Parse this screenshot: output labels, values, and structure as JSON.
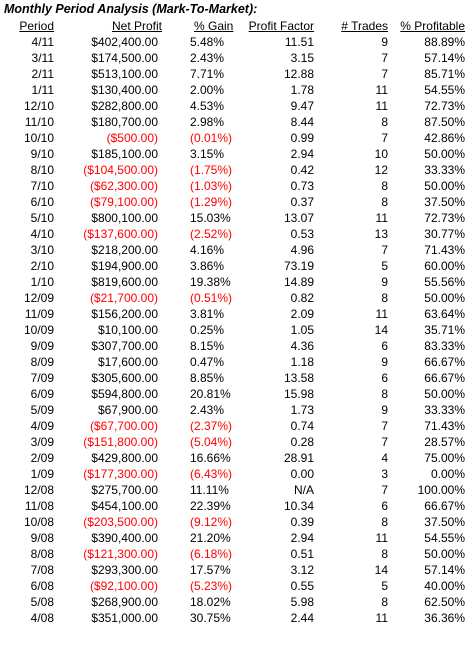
{
  "title": "Monthly Period Analysis (Mark-To-Market):",
  "headers": {
    "period": "Period",
    "net_profit": "Net Profit",
    "gain": "% Gain",
    "profit_factor": "Profit Factor",
    "trades": "# Trades",
    "profitable": "% Profitable"
  },
  "colors": {
    "negative": "#ff0000",
    "text": "#000000"
  },
  "rows": [
    {
      "period": "4/11",
      "net_profit": "$402,400.00",
      "gain": "5.48%",
      "profit_factor": "11.51",
      "trades": "9",
      "profitable": "88.89%",
      "negative": false
    },
    {
      "period": "3/11",
      "net_profit": "$174,500.00",
      "gain": "2.43%",
      "profit_factor": "3.15",
      "trades": "7",
      "profitable": "57.14%",
      "negative": false
    },
    {
      "period": "2/11",
      "net_profit": "$513,100.00",
      "gain": "7.71%",
      "profit_factor": "12.88",
      "trades": "7",
      "profitable": "85.71%",
      "negative": false
    },
    {
      "period": "1/11",
      "net_profit": "$130,400.00",
      "gain": "2.00%",
      "profit_factor": "1.78",
      "trades": "11",
      "profitable": "54.55%",
      "negative": false
    },
    {
      "period": "12/10",
      "net_profit": "$282,800.00",
      "gain": "4.53%",
      "profit_factor": "9.47",
      "trades": "11",
      "profitable": "72.73%",
      "negative": false
    },
    {
      "period": "11/10",
      "net_profit": "$180,700.00",
      "gain": "2.98%",
      "profit_factor": "8.44",
      "trades": "8",
      "profitable": "87.50%",
      "negative": false
    },
    {
      "period": "10/10",
      "net_profit": "($500.00)",
      "gain": "(0.01%)",
      "profit_factor": "0.99",
      "trades": "7",
      "profitable": "42.86%",
      "negative": true
    },
    {
      "period": "9/10",
      "net_profit": "$185,100.00",
      "gain": "3.15%",
      "profit_factor": "2.94",
      "trades": "10",
      "profitable": "50.00%",
      "negative": false
    },
    {
      "period": "8/10",
      "net_profit": "($104,500.00)",
      "gain": "(1.75%)",
      "profit_factor": "0.42",
      "trades": "12",
      "profitable": "33.33%",
      "negative": true
    },
    {
      "period": "7/10",
      "net_profit": "($62,300.00)",
      "gain": "(1.03%)",
      "profit_factor": "0.73",
      "trades": "8",
      "profitable": "50.00%",
      "negative": true
    },
    {
      "period": "6/10",
      "net_profit": "($79,100.00)",
      "gain": "(1.29%)",
      "profit_factor": "0.37",
      "trades": "8",
      "profitable": "37.50%",
      "negative": true
    },
    {
      "period": "5/10",
      "net_profit": "$800,100.00",
      "gain": "15.03%",
      "profit_factor": "13.07",
      "trades": "11",
      "profitable": "72.73%",
      "negative": false
    },
    {
      "period": "4/10",
      "net_profit": "($137,600.00)",
      "gain": "(2.52%)",
      "profit_factor": "0.53",
      "trades": "13",
      "profitable": "30.77%",
      "negative": true
    },
    {
      "period": "3/10",
      "net_profit": "$218,200.00",
      "gain": "4.16%",
      "profit_factor": "4.96",
      "trades": "7",
      "profitable": "71.43%",
      "negative": false
    },
    {
      "period": "2/10",
      "net_profit": "$194,900.00",
      "gain": "3.86%",
      "profit_factor": "73.19",
      "trades": "5",
      "profitable": "60.00%",
      "negative": false
    },
    {
      "period": "1/10",
      "net_profit": "$819,600.00",
      "gain": "19.38%",
      "profit_factor": "14.89",
      "trades": "9",
      "profitable": "55.56%",
      "negative": false
    },
    {
      "period": "12/09",
      "net_profit": "($21,700.00)",
      "gain": "(0.51%)",
      "profit_factor": "0.82",
      "trades": "8",
      "profitable": "50.00%",
      "negative": true
    },
    {
      "period": "11/09",
      "net_profit": "$156,200.00",
      "gain": "3.81%",
      "profit_factor": "2.09",
      "trades": "11",
      "profitable": "63.64%",
      "negative": false
    },
    {
      "period": "10/09",
      "net_profit": "$10,100.00",
      "gain": "0.25%",
      "profit_factor": "1.05",
      "trades": "14",
      "profitable": "35.71%",
      "negative": false
    },
    {
      "period": "9/09",
      "net_profit": "$307,700.00",
      "gain": "8.15%",
      "profit_factor": "4.36",
      "trades": "6",
      "profitable": "83.33%",
      "negative": false
    },
    {
      "period": "8/09",
      "net_profit": "$17,600.00",
      "gain": "0.47%",
      "profit_factor": "1.18",
      "trades": "9",
      "profitable": "66.67%",
      "negative": false
    },
    {
      "period": "7/09",
      "net_profit": "$305,600.00",
      "gain": "8.85%",
      "profit_factor": "13.58",
      "trades": "6",
      "profitable": "66.67%",
      "negative": false
    },
    {
      "period": "6/09",
      "net_profit": "$594,800.00",
      "gain": "20.81%",
      "profit_factor": "15.98",
      "trades": "8",
      "profitable": "50.00%",
      "negative": false
    },
    {
      "period": "5/09",
      "net_profit": "$67,900.00",
      "gain": "2.43%",
      "profit_factor": "1.73",
      "trades": "9",
      "profitable": "33.33%",
      "negative": false
    },
    {
      "period": "4/09",
      "net_profit": "($67,700.00)",
      "gain": "(2.37%)",
      "profit_factor": "0.74",
      "trades": "7",
      "profitable": "71.43%",
      "negative": true
    },
    {
      "period": "3/09",
      "net_profit": "($151,800.00)",
      "gain": "(5.04%)",
      "profit_factor": "0.28",
      "trades": "7",
      "profitable": "28.57%",
      "negative": true
    },
    {
      "period": "2/09",
      "net_profit": "$429,800.00",
      "gain": "16.66%",
      "profit_factor": "28.91",
      "trades": "4",
      "profitable": "75.00%",
      "negative": false
    },
    {
      "period": "1/09",
      "net_profit": "($177,300.00)",
      "gain": "(6.43%)",
      "profit_factor": "0.00",
      "trades": "3",
      "profitable": "0.00%",
      "negative": true
    },
    {
      "period": "12/08",
      "net_profit": "$275,700.00",
      "gain": "11.11%",
      "profit_factor": "N/A",
      "trades": "7",
      "profitable": "100.00%",
      "negative": false
    },
    {
      "period": "11/08",
      "net_profit": "$454,100.00",
      "gain": "22.39%",
      "profit_factor": "10.34",
      "trades": "6",
      "profitable": "66.67%",
      "negative": false
    },
    {
      "period": "10/08",
      "net_profit": "($203,500.00)",
      "gain": "(9.12%)",
      "profit_factor": "0.39",
      "trades": "8",
      "profitable": "37.50%",
      "negative": true
    },
    {
      "period": "9/08",
      "net_profit": "$390,400.00",
      "gain": "21.20%",
      "profit_factor": "2.94",
      "trades": "11",
      "profitable": "54.55%",
      "negative": false
    },
    {
      "period": "8/08",
      "net_profit": "($121,300.00)",
      "gain": "(6.18%)",
      "profit_factor": "0.51",
      "trades": "8",
      "profitable": "50.00%",
      "negative": true
    },
    {
      "period": "7/08",
      "net_profit": "$293,300.00",
      "gain": "17.57%",
      "profit_factor": "3.12",
      "trades": "14",
      "profitable": "57.14%",
      "negative": false
    },
    {
      "period": "6/08",
      "net_profit": "($92,100.00)",
      "gain": "(5.23%)",
      "profit_factor": "0.55",
      "trades": "5",
      "profitable": "40.00%",
      "negative": true
    },
    {
      "period": "5/08",
      "net_profit": "$268,900.00",
      "gain": "18.02%",
      "profit_factor": "5.98",
      "trades": "8",
      "profitable": "62.50%",
      "negative": false
    },
    {
      "period": "4/08",
      "net_profit": "$351,000.00",
      "gain": "30.75%",
      "profit_factor": "2.44",
      "trades": "11",
      "profitable": "36.36%",
      "negative": false
    }
  ]
}
